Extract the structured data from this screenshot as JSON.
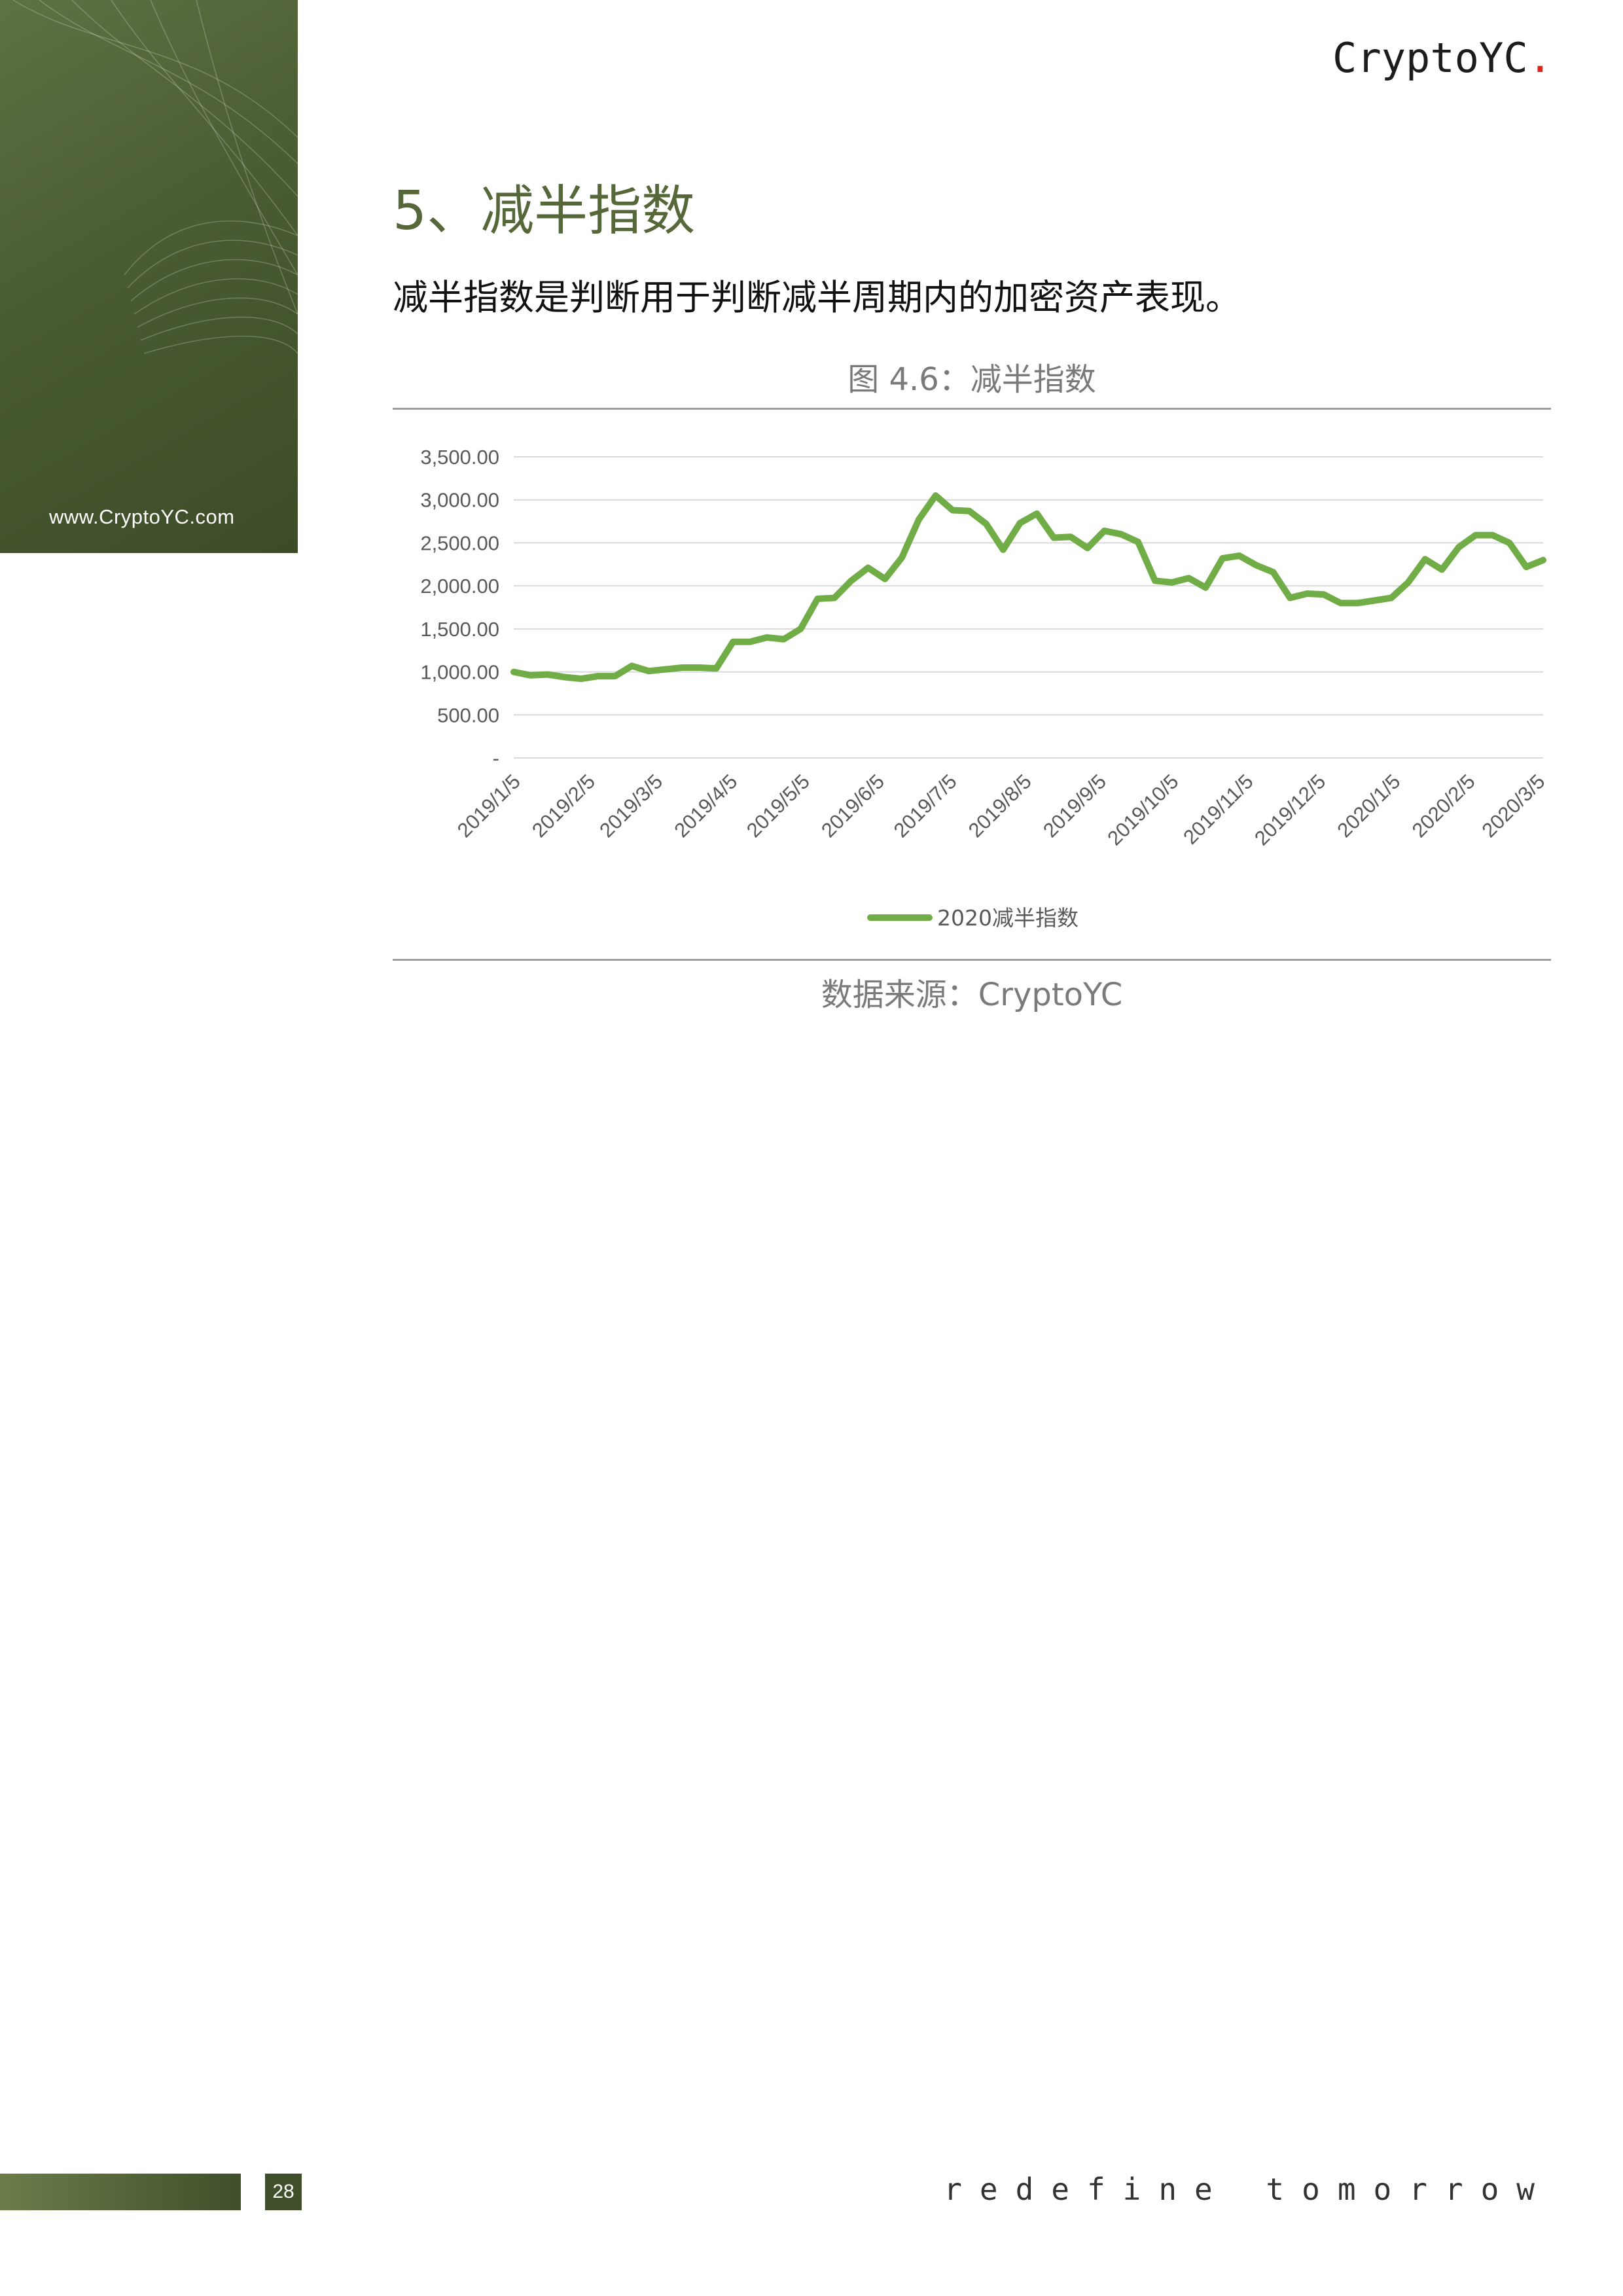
{
  "header": {
    "brand": "CryptoYC",
    "brand_dot": ".",
    "site": "www.CryptoYC.com"
  },
  "section": {
    "title": "5、减半指数",
    "intro": "减半指数是判断用于判断减半周期内的加密资产表现。"
  },
  "figure": {
    "caption": "图 4.6：减半指数",
    "source": "数据来源：CryptoYC"
  },
  "footer": {
    "page": "28",
    "tagline": "redefine tomorrow"
  },
  "colors": {
    "accent": "#56683a",
    "line": "#70ad47",
    "brand_dot": "#e0241b"
  },
  "chart_data": {
    "type": "line",
    "title": "",
    "ylim": [
      0,
      3500
    ],
    "yticks": [
      0,
      500,
      1000,
      1500,
      2000,
      2500,
      3000,
      3500
    ],
    "ytick_labels": [
      "-",
      "500.00",
      "1,000.00",
      "1,500.00",
      "2,000.00",
      "2,500.00",
      "3,000.00",
      "3,500.00"
    ],
    "grid": true,
    "legend_position": "bottom",
    "x_tick_labels": [
      "2019/1/5",
      "2019/2/5",
      "2019/3/5",
      "2019/4/5",
      "2019/5/5",
      "2019/6/5",
      "2019/7/5",
      "2019/8/5",
      "2019/9/5",
      "2019/10/5",
      "2019/11/5",
      "2019/12/5",
      "2020/1/5",
      "2020/2/5",
      "2020/3/5"
    ],
    "series": [
      {
        "name": "2020减半指数",
        "color": "#70ad47",
        "x": [
          "2019/1/5",
          "2019/1/12",
          "2019/1/19",
          "2019/1/26",
          "2019/2/2",
          "2019/2/9",
          "2019/2/16",
          "2019/2/23",
          "2019/3/2",
          "2019/3/9",
          "2019/3/16",
          "2019/3/23",
          "2019/3/30",
          "2019/4/6",
          "2019/4/13",
          "2019/4/20",
          "2019/4/27",
          "2019/5/4",
          "2019/5/11",
          "2019/5/18",
          "2019/5/25",
          "2019/6/1",
          "2019/6/8",
          "2019/6/15",
          "2019/6/22",
          "2019/6/29",
          "2019/7/6",
          "2019/7/13",
          "2019/7/20",
          "2019/7/27",
          "2019/8/3",
          "2019/8/10",
          "2019/8/17",
          "2019/8/24",
          "2019/8/31",
          "2019/9/7",
          "2019/9/14",
          "2019/9/21",
          "2019/9/28",
          "2019/10/5",
          "2019/10/12",
          "2019/10/19",
          "2019/10/26",
          "2019/11/2",
          "2019/11/9",
          "2019/11/16",
          "2019/11/23",
          "2019/11/30",
          "2019/12/7",
          "2019/12/14",
          "2019/12/21",
          "2019/12/28",
          "2020/1/4",
          "2020/1/11",
          "2020/1/18",
          "2020/1/25",
          "2020/2/1",
          "2020/2/8",
          "2020/2/15",
          "2020/2/22",
          "2020/2/29",
          "2020/3/7"
        ],
        "values": [
          1000,
          960,
          970,
          940,
          920,
          950,
          950,
          1070,
          1010,
          1030,
          1050,
          1050,
          1040,
          1350,
          1350,
          1400,
          1380,
          1500,
          1850,
          1860,
          2060,
          2210,
          2080,
          2330,
          2770,
          3050,
          2880,
          2870,
          2720,
          2420,
          2730,
          2840,
          2560,
          2570,
          2440,
          2640,
          2600,
          2510,
          2060,
          2040,
          2090,
          1980,
          2320,
          2350,
          2240,
          2160,
          1860,
          1910,
          1900,
          1800,
          1800,
          1830,
          1860,
          2040,
          2310,
          2190,
          2450,
          2590,
          2590,
          2500,
          2220,
          2300
        ]
      }
    ]
  }
}
